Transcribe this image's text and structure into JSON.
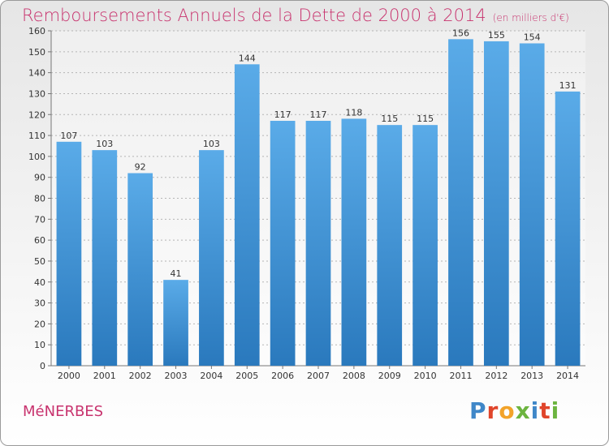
{
  "header": {
    "title": "Remboursements Annuels de la Dette de 2000 à 2014",
    "subtitle": "(en milliers d'€)"
  },
  "footer": {
    "commune": "MéNERBES",
    "logo_letters": [
      "P",
      "r",
      "o",
      "x",
      "i",
      "t",
      "i"
    ]
  },
  "colors": {
    "title": "#c8336e",
    "bar_top": "#5aabe8",
    "bar_bottom": "#2a79bd"
  },
  "chart_data": {
    "type": "bar",
    "title": "Remboursements Annuels de la Dette de 2000 à 2014",
    "subtitle": "(en milliers d'€)",
    "xlabel": "",
    "ylabel": "",
    "categories": [
      "2000",
      "2001",
      "2002",
      "2003",
      "2004",
      "2005",
      "2006",
      "2007",
      "2008",
      "2009",
      "2010",
      "2011",
      "2012",
      "2013",
      "2014"
    ],
    "values": [
      107,
      103,
      92,
      41,
      103,
      144,
      117,
      117,
      118,
      115,
      115,
      156,
      155,
      154,
      131
    ],
    "ylim": [
      0,
      160
    ],
    "yticks": [
      0,
      10,
      20,
      30,
      40,
      50,
      60,
      70,
      80,
      90,
      100,
      110,
      120,
      130,
      140,
      150,
      160
    ],
    "grid": true,
    "data_labels": true
  }
}
